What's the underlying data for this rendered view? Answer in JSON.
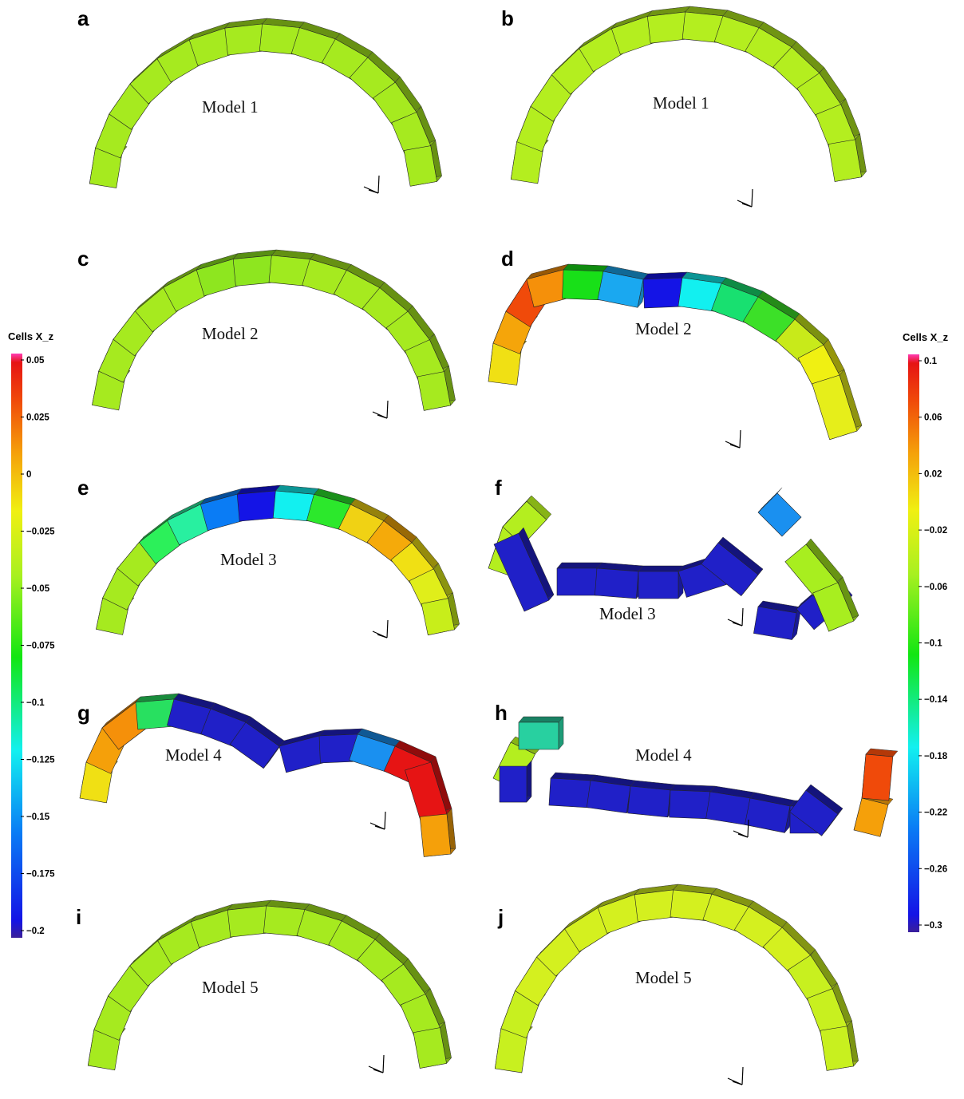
{
  "left_colorbar": {
    "title": "Cells X_z",
    "ticks": [
      "0.05",
      "0.025",
      "0",
      "−0.025",
      "−0.05",
      "−0.075",
      "−0.1",
      "−0.125",
      "−0.15",
      "−0.175",
      "−0.2"
    ]
  },
  "right_colorbar": {
    "title": "Cells X_z",
    "ticks": [
      "0.1",
      "0.06",
      "0.02",
      "−0.02",
      "−0.06",
      "−0.1",
      "−0.14",
      "−0.18",
      "−0.22",
      "−0.26",
      "−0.3"
    ]
  },
  "colormap": [
    "#3a1f9a",
    "#1414e6",
    "#0a7cf5",
    "#12f0f0",
    "#12e612",
    "#a8f020",
    "#f0f012",
    "#f5a00a",
    "#f04a0a",
    "#e61414",
    "#ff3cb4"
  ],
  "panels": [
    {
      "letter": "a",
      "model": "Model 1"
    },
    {
      "letter": "b",
      "model": "Model 1"
    },
    {
      "letter": "c",
      "model": "Model 2"
    },
    {
      "letter": "d",
      "model": "Model 2"
    },
    {
      "letter": "e",
      "model": "Model 3"
    },
    {
      "letter": "f",
      "model": "Model 3"
    },
    {
      "letter": "g",
      "model": "Model 4"
    },
    {
      "letter": "h",
      "model": "Model 4"
    },
    {
      "letter": "i",
      "model": "Model 5"
    },
    {
      "letter": "j",
      "model": "Model 5"
    }
  ],
  "block_colors": {
    "a": [
      "#a6ea1f",
      "#a6ea1f",
      "#a6ea1f",
      "#a6ea1f",
      "#a6ea1f",
      "#a6ea1f",
      "#a6ea1f",
      "#a6ea1f",
      "#a6ea1f",
      "#a6ea1f",
      "#a6ea1f",
      "#a6ea1f",
      "#a6ea1f",
      "#a6ea1f"
    ],
    "b": [
      "#b4ee1f",
      "#b4ee1f",
      "#b4ee1f",
      "#b4ee1f",
      "#b4ee1f",
      "#b4ee1f",
      "#b4ee1f",
      "#b4ee1f",
      "#b4ee1f",
      "#b4ee1f",
      "#b4ee1f",
      "#b4ee1f",
      "#b4ee1f",
      "#b4ee1f"
    ],
    "c": [
      "#a6ea1f",
      "#a6ea1f",
      "#a6ea1f",
      "#a6ea1f",
      "#a0ea1f",
      "#8ee61f",
      "#8ee61f",
      "#a0ea1f",
      "#a6ea1f",
      "#a6ea1f",
      "#a6ea1f",
      "#a6ea1f",
      "#a6ea1f",
      "#a6ea1f"
    ],
    "d": [
      "#f0e014",
      "#f5a50a",
      "#f04a0a",
      "#f5900a",
      "#18e018",
      "#1aa8f0",
      "#1414e6",
      "#12f0f0",
      "#18e070",
      "#3ce028",
      "#c8ea1a",
      "#f0f012",
      "#e6ee1a",
      "#d8ee1a"
    ],
    "e": [
      "#a6ea1f",
      "#a6ea1f",
      "#a6ea1f",
      "#2cf05a",
      "#28f0a0",
      "#0a7cf5",
      "#1414e6",
      "#12f0f0",
      "#2ce82c",
      "#f0d214",
      "#f5aa0a",
      "#f0e014",
      "#e0ee1a",
      "#c8ee1a"
    ],
    "f": [
      "#b4ee1f",
      "#b4ee1f",
      "#2020c8",
      "#2020c8",
      "#2020c8",
      "#2020c8",
      "#2020c8",
      "#2020c8",
      "#2020c8",
      "#2020c8",
      "#1a90f0",
      "#a8ee1f",
      "#a8ee1f"
    ],
    "g": [
      "#f0e014",
      "#f5a00a",
      "#f5900a",
      "#28e060",
      "#2020c8",
      "#2020c8",
      "#2020c8",
      "#2020c8",
      "#2020c8",
      "#1a90f0",
      "#e61414",
      "#e61414",
      "#f5a00a"
    ],
    "h": [
      "#b4ee1f",
      "#28d0a0",
      "#2020c8",
      "#2020c8",
      "#2020c8",
      "#2020c8",
      "#2020c8",
      "#2020c8",
      "#2020c8",
      "#2020c8",
      "#2020c8",
      "#f5a00a",
      "#f04a0a"
    ],
    "i": [
      "#a6ea1f",
      "#a6ea1f",
      "#a6ea1f",
      "#a6ea1f",
      "#a6ea1f",
      "#a6ea1f",
      "#a6ea1f",
      "#a6ea1f",
      "#a6ea1f",
      "#a6ea1f",
      "#a6ea1f",
      "#a6ea1f",
      "#a6ea1f",
      "#a6ea1f"
    ],
    "j": [
      "#c8f01f",
      "#c8f01f",
      "#d4f01f",
      "#d4f01f",
      "#d4f01f",
      "#d4f01f",
      "#d4f01f",
      "#d4f01f",
      "#d4f01f",
      "#d4f01f",
      "#d4f01f",
      "#c8f01f",
      "#c8f01f",
      "#c8f01f"
    ]
  }
}
